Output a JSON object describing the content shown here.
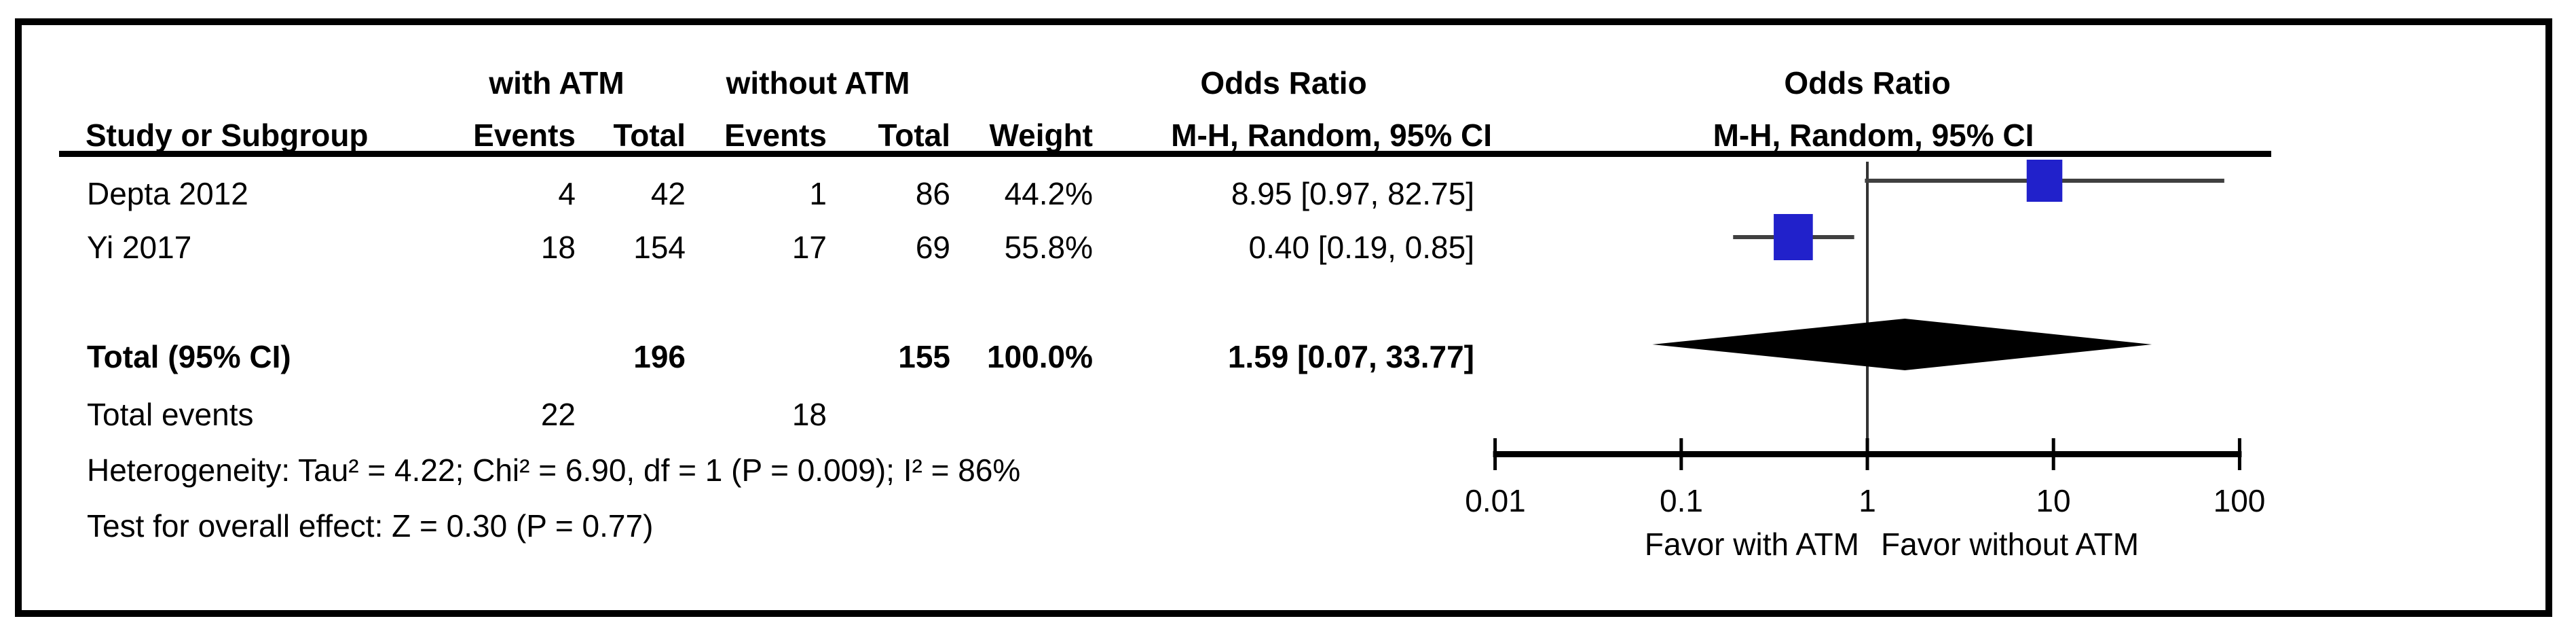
{
  "table": {
    "group_headers": {
      "with_atm": "with ATM",
      "without_atm": "without ATM",
      "odds_ratio_left": "Odds Ratio",
      "odds_ratio_right": "Odds Ratio"
    },
    "column_headers": {
      "study": "Study or Subgroup",
      "events1": "Events",
      "total1": "Total",
      "events2": "Events",
      "total2": "Total",
      "weight": "Weight",
      "mh_left": "M-H, Random, 95% CI",
      "mh_right": "M-H, Random, 95% CI"
    },
    "rows": [
      {
        "study": "Depta 2012",
        "events1": "4",
        "total1": "42",
        "events2": "1",
        "total2": "86",
        "weight": "44.2%",
        "or_ci": "8.95 [0.97, 82.75]"
      },
      {
        "study": "Yi 2017",
        "events1": "18",
        "total1": "154",
        "events2": "17",
        "total2": "69",
        "weight": "55.8%",
        "or_ci": "0.40 [0.19, 0.85]"
      }
    ],
    "total_row": {
      "label": "Total (95% CI)",
      "total1": "196",
      "total2": "155",
      "weight": "100.0%",
      "or_ci": "1.59 [0.07, 33.77]"
    },
    "total_events_row": {
      "label": "Total events",
      "events1": "22",
      "events2": "18"
    },
    "footnotes": {
      "heterogeneity": "Heterogeneity: Tau² = 4.22; Chi² = 6.90, df = 1 (P = 0.009); I² = 86%",
      "overall_effect": "Test for overall effect: Z = 0.30 (P = 0.77)"
    }
  },
  "axis": {
    "tick_labels": [
      "0.01",
      "0.1",
      "1",
      "10",
      "100"
    ],
    "favor_left": "Favor with ATM",
    "favor_right": "Favor without ATM"
  },
  "colors": {
    "marker_blue": "#2121CB",
    "whisker_gray": "#404040",
    "line_black": "#000000",
    "refline_gray": "#333333"
  },
  "chart_data": {
    "type": "forest",
    "effect_measure": "Odds Ratio, M-H, Random, 95% CI",
    "x_axis": {
      "scale": "log10",
      "ticks": [
        0.01,
        0.1,
        1,
        10,
        100
      ],
      "range": [
        0.01,
        100
      ]
    },
    "studies": [
      {
        "name": "Depta 2012",
        "or": 8.95,
        "ci_low": 0.97,
        "ci_high": 82.75,
        "weight_pct": 44.2
      },
      {
        "name": "Yi 2017",
        "or": 0.4,
        "ci_low": 0.19,
        "ci_high": 0.85,
        "weight_pct": 55.8
      }
    ],
    "total": {
      "label": "Total (95% CI)",
      "or": 1.59,
      "ci_low": 0.07,
      "ci_high": 33.77,
      "weight_pct": 100.0
    },
    "heterogeneity": {
      "tau2": 4.22,
      "chi2": 6.9,
      "df": 1,
      "p": 0.009,
      "i2_pct": 86
    },
    "overall_effect": {
      "z": 0.3,
      "p": 0.77
    },
    "favor_labels": {
      "left": "Favor with ATM",
      "right": "Favor without ATM"
    }
  }
}
